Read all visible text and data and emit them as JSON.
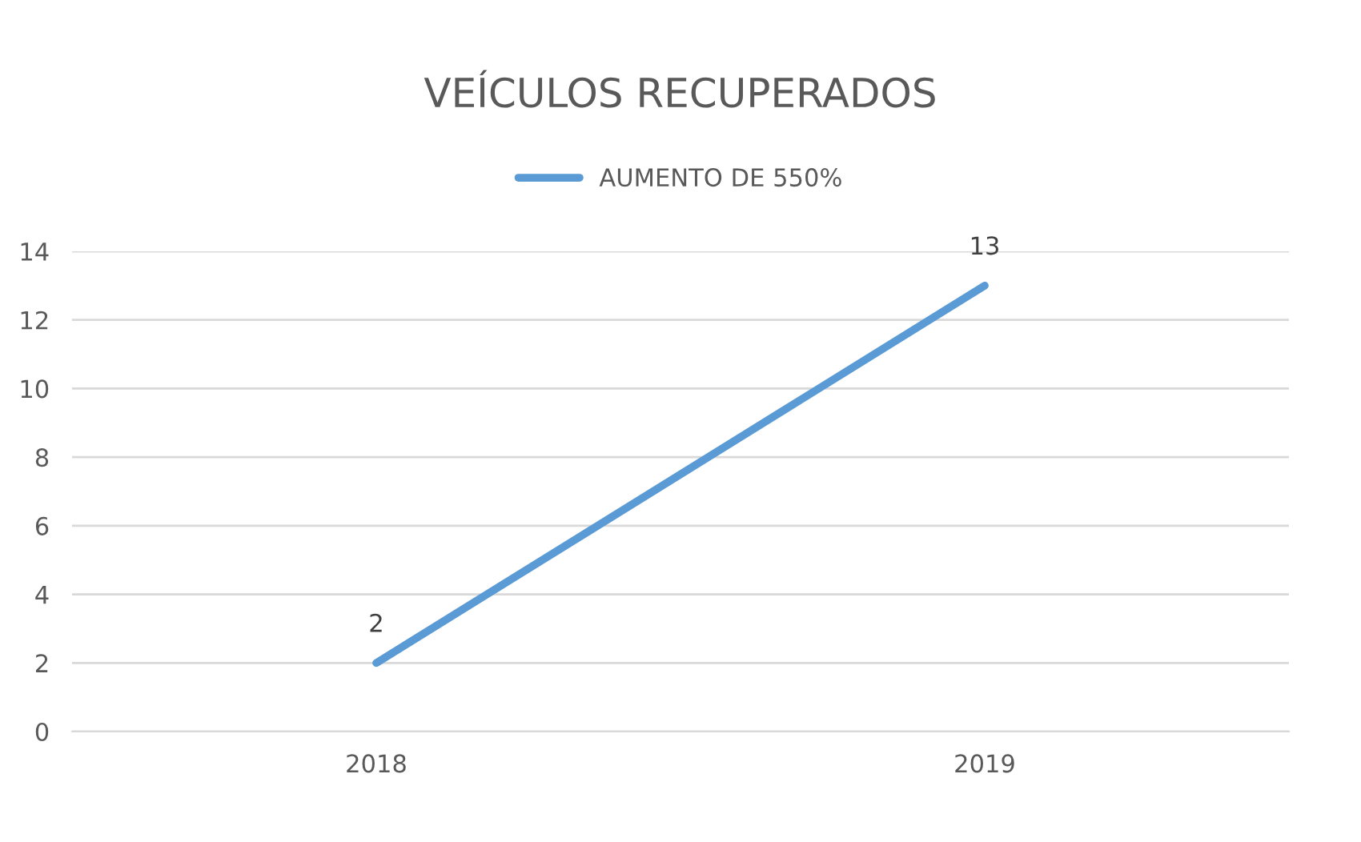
{
  "chart_data": {
    "type": "line",
    "title": "VEÍCULOS RECUPERADOS",
    "categories": [
      "2018",
      "2019"
    ],
    "series": [
      {
        "name": "AUMENTO DE 550%",
        "color": "#5b9bd5",
        "values": [
          2,
          13
        ]
      }
    ],
    "ylim": [
      0,
      14
    ],
    "yticks": [
      0,
      2,
      4,
      6,
      8,
      10,
      12,
      14
    ],
    "grid": "y",
    "legend": "top",
    "data_labels": true,
    "marker": "none",
    "line_style": "solid"
  }
}
